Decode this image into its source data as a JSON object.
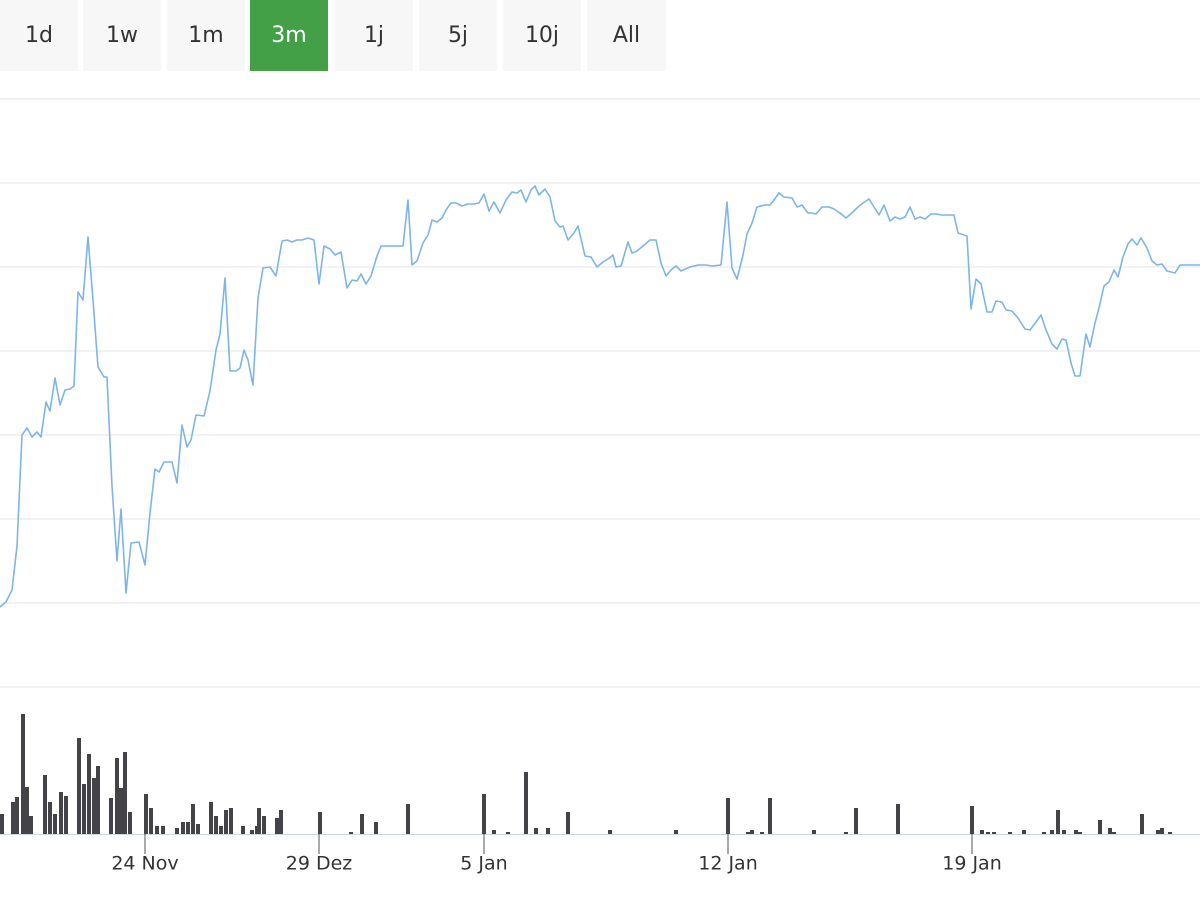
{
  "range_buttons": {
    "labels": [
      "1d",
      "1w",
      "1m",
      "3m",
      "1j",
      "5j",
      "10j",
      "All"
    ],
    "selected": 3,
    "color": "#f7f7f7",
    "selected_color": "#43a047"
  },
  "chart_data": [
    {
      "type": "line",
      "color": "#7cb5ec",
      "grid": true,
      "xlim": [
        0,
        1200
      ],
      "ylim": [
        0,
        588
      ],
      "yticks": [
        0,
        84,
        168,
        252,
        336,
        420,
        504,
        588
      ],
      "x": [
        0,
        6,
        12,
        17,
        22,
        27,
        32,
        37,
        41,
        46,
        50,
        55,
        60,
        65,
        70,
        74,
        78,
        83,
        88,
        93,
        98,
        104,
        107,
        112,
        117,
        121,
        126,
        131,
        139,
        145,
        150,
        155,
        159,
        164,
        172,
        177,
        182,
        187,
        191,
        196,
        204,
        210,
        216,
        220,
        225,
        230,
        236,
        240,
        244,
        248,
        253,
        258,
        263,
        270,
        276,
        282,
        287,
        292,
        297,
        302,
        308,
        314,
        319,
        324,
        330,
        335,
        341,
        347,
        352,
        357,
        361,
        366,
        371,
        377,
        381,
        390,
        397,
        403,
        408,
        412,
        417,
        423,
        428,
        432,
        437,
        442,
        446,
        451,
        456,
        462,
        468,
        474,
        479,
        484,
        489,
        494,
        500,
        506,
        512,
        517,
        521,
        526,
        531,
        535,
        539,
        545,
        550,
        555,
        560,
        563,
        568,
        574,
        578,
        585,
        591,
        597,
        603,
        608,
        613,
        616,
        621,
        628,
        632,
        637,
        643,
        650,
        656,
        661,
        666,
        671,
        676,
        681,
        690,
        698,
        706,
        712,
        721,
        727,
        732,
        737,
        743,
        747,
        752,
        757,
        765,
        770,
        774,
        779,
        784,
        792,
        797,
        802,
        808,
        812,
        816,
        822,
        829,
        834,
        840,
        846,
        852,
        858,
        863,
        869,
        874,
        879,
        884,
        890,
        895,
        900,
        905,
        910,
        915,
        920,
        925,
        931,
        936,
        942,
        947,
        954,
        958,
        967,
        971,
        976,
        981,
        987,
        992,
        996,
        1002,
        1006,
        1012,
        1018,
        1025,
        1030,
        1036,
        1041,
        1046,
        1052,
        1057,
        1062,
        1066,
        1071,
        1075,
        1080,
        1086,
        1090,
        1095,
        1099,
        1104,
        1109,
        1114,
        1118,
        1123,
        1128,
        1132,
        1137,
        1141,
        1147,
        1152,
        1157,
        1162,
        1167,
        1175,
        1180,
        1186,
        1192,
        1200
      ],
      "values": [
        80,
        85,
        97,
        141,
        252,
        259,
        250,
        255,
        250,
        285,
        276,
        309,
        282,
        297,
        298,
        301,
        395,
        387,
        450,
        387,
        320,
        310,
        310,
        201,
        126,
        178,
        94,
        144,
        145,
        122,
        174,
        218,
        215,
        225,
        225,
        204,
        262,
        240,
        247,
        272,
        271,
        296,
        337,
        353,
        409,
        316,
        316,
        319,
        337,
        327,
        302,
        389,
        419,
        420,
        411,
        446,
        447,
        445,
        447,
        447,
        449,
        447,
        403,
        441,
        438,
        432,
        435,
        399,
        407,
        406,
        413,
        403,
        411,
        431,
        441,
        441,
        441,
        441,
        487,
        422,
        426,
        444,
        452,
        467,
        465,
        469,
        477,
        484,
        484,
        481,
        483,
        483,
        484,
        493,
        476,
        485,
        474,
        487,
        495,
        494,
        497,
        485,
        497,
        501,
        492,
        498,
        490,
        466,
        460,
        461,
        447,
        454,
        461,
        431,
        430,
        420,
        425,
        428,
        432,
        420,
        421,
        445,
        434,
        436,
        441,
        447,
        447,
        424,
        411,
        417,
        421,
        416,
        420,
        422,
        422,
        421,
        422,
        485,
        419,
        408,
        432,
        453,
        464,
        480,
        482,
        482,
        487,
        494,
        490,
        489,
        480,
        482,
        474,
        474,
        473,
        480,
        480,
        478,
        474,
        469,
        474,
        480,
        484,
        488,
        480,
        472,
        482,
        466,
        470,
        468,
        470,
        480,
        468,
        470,
        468,
        473,
        473,
        472,
        472,
        472,
        454,
        451,
        378,
        408,
        403,
        375,
        375,
        386,
        385,
        377,
        376,
        369,
        358,
        357,
        365,
        372,
        357,
        343,
        338,
        348,
        347,
        324,
        311,
        311,
        353,
        340,
        364,
        379,
        401,
        405,
        417,
        410,
        430,
        443,
        448,
        442,
        449,
        439,
        426,
        422,
        423,
        416,
        414,
        422,
        422,
        422,
        422
      ]
    },
    {
      "type": "bar",
      "color": "#434348",
      "xlim": [
        0,
        1200
      ],
      "ylim": [
        0,
        120
      ],
      "xticks": [
        {
          "value": 145,
          "label": "24 Nov"
        },
        {
          "value": 319,
          "label": "29 Dez"
        },
        {
          "value": 484,
          "label": "5 Jan"
        },
        {
          "value": 728,
          "label": "12 Jan"
        },
        {
          "value": 972,
          "label": "19 Jan"
        }
      ],
      "x": [
        2,
        13,
        17,
        23,
        27,
        31,
        45,
        50,
        55,
        61,
        66,
        79,
        84,
        89,
        94,
        98,
        111,
        117,
        121,
        125,
        130,
        146,
        151,
        157,
        163,
        177,
        183,
        188,
        193,
        198,
        211,
        216,
        221,
        226,
        231,
        243,
        252,
        257,
        259,
        264,
        277,
        281,
        320,
        351,
        362,
        376,
        408,
        484,
        494,
        508,
        526,
        536,
        548,
        568,
        610,
        676,
        728,
        748,
        752,
        762,
        770,
        814,
        846,
        856,
        898,
        972,
        982,
        988,
        994,
        1010,
        1024,
        1044,
        1052,
        1058,
        1064,
        1076,
        1080,
        1100,
        1110,
        1114,
        1142,
        1158,
        1162,
        1170
      ],
      "values": [
        20,
        32,
        37,
        120,
        47,
        18,
        59,
        32,
        20,
        42,
        38,
        96,
        50,
        80,
        56,
        68,
        36,
        76,
        46,
        82,
        22,
        40,
        26,
        8,
        8,
        6,
        12,
        12,
        30,
        10,
        32,
        18,
        8,
        24,
        26,
        8,
        4,
        8,
        26,
        18,
        16,
        24,
        22,
        2,
        20,
        12,
        30,
        40,
        4,
        2,
        62,
        6,
        6,
        22,
        4,
        4,
        36,
        2,
        4,
        2,
        36,
        4,
        2,
        26,
        30,
        28,
        4,
        2,
        2,
        2,
        4,
        2,
        4,
        24,
        4,
        4,
        2,
        14,
        6,
        2,
        20,
        4,
        6,
        2
      ]
    }
  ]
}
